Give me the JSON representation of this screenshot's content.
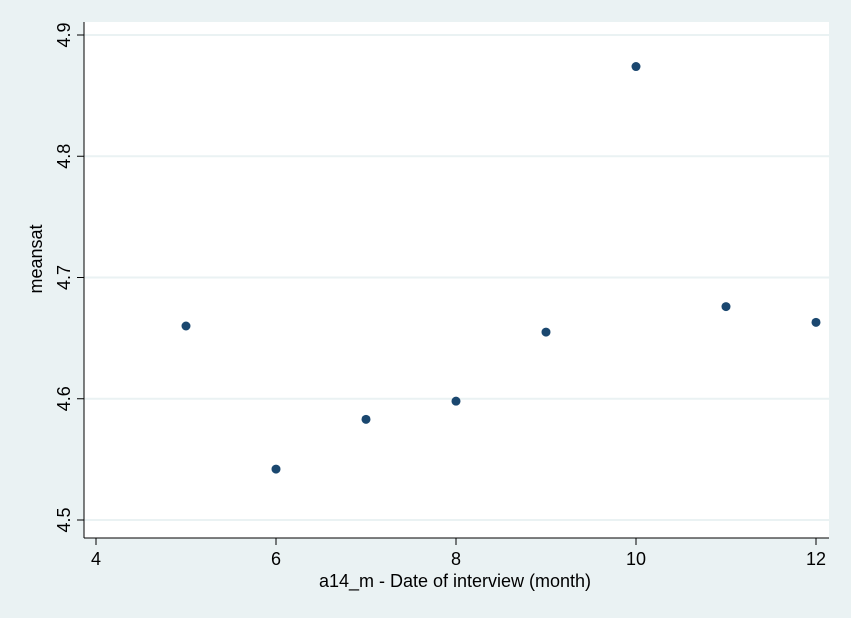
{
  "chart_data": {
    "type": "scatter",
    "xlabel": "a14_m - Date of interview (month)",
    "ylabel": "meansat",
    "xlim": [
      4,
      12
    ],
    "ylim": [
      4.5,
      4.9
    ],
    "x_ticks": [
      "4",
      "6",
      "8",
      "10",
      "12"
    ],
    "y_ticks": [
      "4.5",
      "4.6",
      "4.7",
      "4.8",
      "4.9"
    ],
    "grid": true,
    "points": [
      {
        "x": 5,
        "y": 4.66
      },
      {
        "x": 6,
        "y": 4.542
      },
      {
        "x": 7,
        "y": 4.583
      },
      {
        "x": 8,
        "y": 4.598
      },
      {
        "x": 9,
        "y": 4.655
      },
      {
        "x": 10,
        "y": 4.874
      },
      {
        "x": 11,
        "y": 4.676
      },
      {
        "x": 12,
        "y": 4.663
      }
    ],
    "colors": {
      "background": "#eaf2f3",
      "plot": "#ffffff",
      "marker": "#1a476f",
      "grid": "#eaf2f3"
    }
  }
}
